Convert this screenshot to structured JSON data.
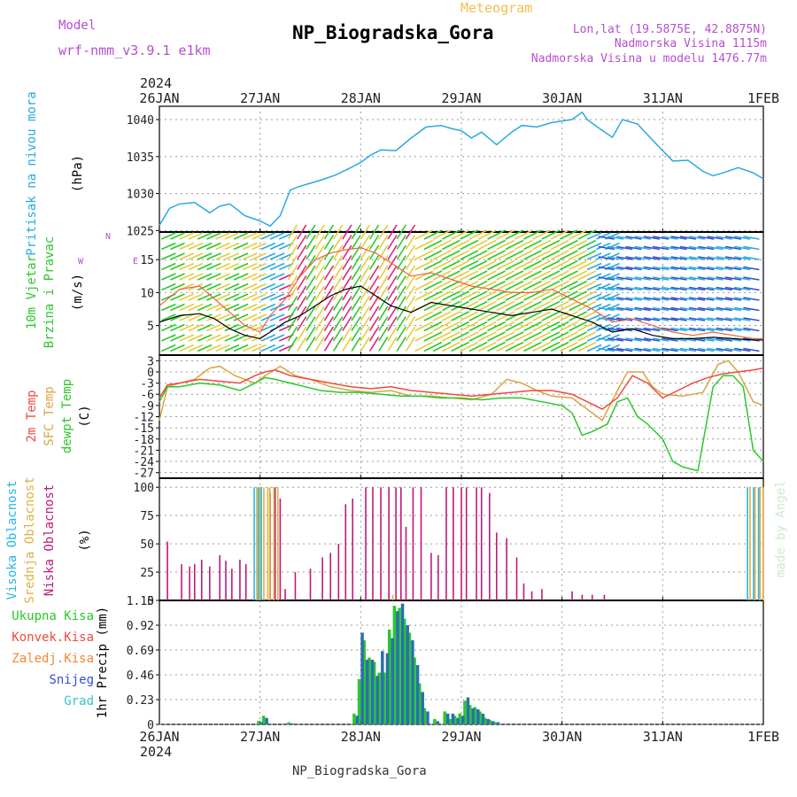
{
  "header": {
    "model_label": "Model",
    "model_name": "wrf-nmm_v3.9.1 e1km",
    "product": "Meteogram",
    "station": "NP_Biogradska_Gora",
    "coords": "Lon,lat (19.5875E, 42.8875N)",
    "elevation": "Nadmorska Visina 1115m",
    "model_elevation": "Nadmorska Visina u modelu 1476.77m",
    "credit": "made by Angel",
    "footer_station": "NP_Biogradska_Gora"
  },
  "colors": {
    "pressure": "#29a9e0",
    "temp2m": "#f04a3c",
    "sfc": "#d9a441",
    "dewpt": "#29c929",
    "high_cloud": "#28b4e6",
    "mid_cloud": "#e0b040",
    "low_cloud": "#c0187a",
    "label_purple": "#b54fd0",
    "total_precip": "#29c929",
    "conv": "#f04a3c",
    "frozen": "#f08a30",
    "snow": "#3050d0",
    "hail": "#30c8c8",
    "gray_text": "#333333"
  },
  "chart_data": [
    {
      "type": "line",
      "panel": "pressure",
      "year_label": "2024",
      "x_ticks": [
        "26JAN",
        "27JAN",
        "28JAN",
        "29JAN",
        "30JAN",
        "31JAN",
        "1FEB"
      ],
      "ylabel_title": "Pritisak na nivou mora",
      "ylabel_unit": "(hPa)",
      "yticks": [
        "1025",
        "1030",
        "1035",
        "1040"
      ],
      "ylim": [
        1024.8,
        1041.8
      ],
      "series": [
        {
          "name": "Pritisak na nivou mora",
          "x_days": [
            0,
            0.1,
            0.2,
            0.35,
            0.5,
            0.6,
            0.7,
            0.85,
            1.0,
            1.1,
            1.2,
            1.3,
            1.4,
            1.5,
            1.6,
            1.75,
            1.9,
            2.0,
            2.1,
            2.2,
            2.35,
            2.5,
            2.65,
            2.8,
            2.9,
            3.0,
            3.1,
            3.2,
            3.35,
            3.5,
            3.6,
            3.75,
            3.9,
            4.0,
            4.1,
            4.2,
            4.25,
            4.35,
            4.5,
            4.6,
            4.75,
            4.9,
            5.0,
            5.1,
            5.25,
            5.4,
            5.5,
            5.6,
            5.75,
            5.9,
            6.0
          ],
          "values": [
            1025.7,
            1028.0,
            1028.6,
            1028.8,
            1027.4,
            1028.3,
            1028.6,
            1027.0,
            1026.3,
            1025.6,
            1027.0,
            1030.5,
            1031.0,
            1031.4,
            1031.8,
            1032.5,
            1033.5,
            1034.2,
            1035.2,
            1035.9,
            1035.8,
            1037.5,
            1039.0,
            1039.2,
            1038.8,
            1038.5,
            1037.5,
            1038.3,
            1036.6,
            1038.3,
            1039.2,
            1039.0,
            1039.6,
            1039.8,
            1040.0,
            1041.0,
            1040.0,
            1039.0,
            1037.6,
            1040.0,
            1039.4,
            1037.2,
            1035.8,
            1034.4,
            1034.5,
            1033.0,
            1032.4,
            1032.8,
            1033.5,
            1032.8,
            1032.0
          ]
        }
      ]
    },
    {
      "type": "line",
      "panel": "wind",
      "ylabel_title": "10m Vjetar",
      "ylabel_title2": "Brzina i Pravac",
      "ylabel_unit": "(m/s)",
      "yticks": [
        "5",
        "10",
        "15"
      ],
      "ylim": [
        0.5,
        19.2
      ],
      "compass": "N",
      "series": [
        {
          "name": "wind speed",
          "x_days": [
            0,
            0.2,
            0.4,
            0.55,
            0.7,
            0.85,
            1.0,
            1.1,
            1.25,
            1.4,
            1.55,
            1.7,
            1.85,
            2.0,
            2.15,
            2.3,
            2.5,
            2.7,
            2.9,
            3.1,
            3.3,
            3.5,
            3.7,
            3.9,
            4.1,
            4.3,
            4.5,
            4.7,
            4.9,
            5.1,
            5.3,
            5.5,
            5.7,
            5.9,
            6.0
          ],
          "values": [
            5.5,
            6.5,
            6.8,
            6.0,
            4.5,
            3.5,
            3.0,
            4.0,
            5.5,
            6.5,
            8.0,
            9.5,
            10.5,
            11.0,
            9.5,
            8.0,
            7.0,
            8.5,
            8.0,
            7.5,
            7.0,
            6.5,
            7.0,
            7.5,
            6.5,
            5.5,
            4.0,
            4.5,
            3.5,
            3.0,
            3.0,
            3.2,
            3.0,
            2.8,
            2.8
          ]
        },
        {
          "name": "wind gust",
          "x_days": [
            0,
            0.2,
            0.4,
            0.55,
            0.7,
            0.85,
            1.0,
            1.1,
            1.25,
            1.4,
            1.55,
            1.7,
            1.85,
            2.0,
            2.15,
            2.3,
            2.5,
            2.7,
            2.9,
            3.1,
            3.3,
            3.5,
            3.7,
            3.9,
            4.1,
            4.3,
            4.5,
            4.7,
            4.9,
            5.1,
            5.3,
            5.5,
            5.7,
            5.9,
            6.0
          ],
          "values": [
            8.0,
            10.5,
            11.0,
            9.0,
            7.0,
            5.0,
            4.0,
            6.5,
            9.0,
            12.5,
            15.0,
            16.0,
            16.5,
            16.8,
            16.0,
            14.5,
            12.5,
            13.0,
            12.0,
            11.0,
            10.5,
            10.0,
            10.0,
            10.5,
            9.0,
            7.5,
            5.5,
            6.0,
            5.0,
            4.0,
            3.5,
            4.0,
            3.5,
            3.0,
            3.0
          ]
        }
      ]
    },
    {
      "type": "line",
      "panel": "temperature",
      "ylabel_title": "2m Temp",
      "ylabel_title2": "SFC Temp",
      "ylabel_title3": "dewpt Temp",
      "ylabel_unit": "(C)",
      "yticks": [
        "3",
        "0",
        "-3",
        "-6",
        "-9",
        "-12",
        "-15",
        "-18",
        "-21",
        "-24",
        "-27"
      ],
      "ylim": [
        -28.5,
        4.5
      ],
      "series": [
        {
          "name": "2m Temp",
          "x_days": [
            0,
            0.08,
            0.2,
            0.4,
            0.6,
            0.8,
            0.95,
            1.05,
            1.15,
            1.3,
            1.5,
            1.7,
            1.9,
            2.1,
            2.3,
            2.5,
            2.7,
            2.9,
            3.1,
            3.3,
            3.5,
            3.7,
            3.9,
            4.1,
            4.25,
            4.4,
            4.55,
            4.7,
            4.85,
            5.0,
            5.15,
            5.3,
            5.45,
            5.6,
            5.75,
            5.9,
            6.0
          ],
          "values": [
            -7,
            -3.5,
            -3,
            -2,
            -2.5,
            -3,
            -1,
            0,
            0.5,
            -1,
            -2,
            -3,
            -4,
            -4.5,
            -4,
            -5,
            -5.5,
            -6,
            -6.5,
            -6,
            -5.5,
            -5,
            -5,
            -6,
            -8,
            -10,
            -7,
            -1,
            -3,
            -7,
            -5,
            -3,
            -1.5,
            -0.5,
            0,
            0.5,
            1
          ]
        },
        {
          "name": "SFC Temp",
          "x_days": [
            0,
            0.08,
            0.2,
            0.35,
            0.5,
            0.6,
            0.75,
            0.95,
            1.05,
            1.2,
            1.35,
            1.5,
            1.7,
            1.9,
            2.1,
            2.3,
            2.5,
            2.7,
            2.9,
            3.1,
            3.3,
            3.45,
            3.6,
            3.75,
            3.9,
            4.1,
            4.25,
            4.4,
            4.55,
            4.65,
            4.8,
            4.9,
            5.0,
            5.2,
            5.4,
            5.55,
            5.65,
            5.75,
            5.9,
            6.0
          ],
          "values": [
            -13,
            -4,
            -3,
            -2,
            1,
            1.5,
            -1,
            -3,
            -1,
            1.5,
            -1,
            -2,
            -4,
            -5,
            -5.5,
            -5,
            -6.5,
            -6.5,
            -7,
            -7.5,
            -6,
            -2,
            -3,
            -5,
            -6.5,
            -7,
            -10,
            -13,
            -5,
            0,
            0,
            -4,
            -6,
            -6.5,
            -5.5,
            2,
            3,
            0,
            -8,
            -9
          ]
        },
        {
          "name": "dewpt Temp",
          "x_days": [
            0,
            0.08,
            0.2,
            0.4,
            0.6,
            0.8,
            0.95,
            1.05,
            1.15,
            1.3,
            1.45,
            1.6,
            1.8,
            2.0,
            2.2,
            2.4,
            2.6,
            2.8,
            3.0,
            3.2,
            3.4,
            3.6,
            3.8,
            4.0,
            4.1,
            4.2,
            4.3,
            4.45,
            4.55,
            4.65,
            4.75,
            4.85,
            5.0,
            5.1,
            5.2,
            5.35,
            5.5,
            5.6,
            5.7,
            5.8,
            5.9,
            6.0
          ],
          "values": [
            -8,
            -4,
            -4,
            -3,
            -3.5,
            -5,
            -3,
            -1.5,
            -2,
            -3,
            -4,
            -5,
            -5.5,
            -5.5,
            -6,
            -6.5,
            -6.5,
            -7,
            -7,
            -7.5,
            -7,
            -7,
            -8,
            -9,
            -11,
            -17,
            -16,
            -14,
            -8,
            -7,
            -12,
            -14,
            -18,
            -24,
            -25.5,
            -26.5,
            -4,
            -1,
            -1,
            -4,
            -21,
            -24
          ]
        }
      ]
    },
    {
      "type": "bar",
      "panel": "clouds",
      "ylabel_title": "Visoka Oblacnost",
      "ylabel_title2": "Srednja Oblacnost",
      "ylabel_title3": "Niska Oblacnost",
      "ylabel_unit": "(%)",
      "yticks": [
        "0",
        "25",
        "50",
        "75",
        "100"
      ],
      "ylim": [
        0,
        108
      ],
      "series": [
        {
          "name": "Niska Oblacnost",
          "x_days": [
            0.08,
            0.22,
            0.3,
            0.35,
            0.42,
            0.5,
            0.6,
            0.66,
            0.72,
            0.8,
            0.86,
            1.1,
            1.15,
            1.2,
            1.25,
            1.35,
            1.5,
            1.62,
            1.7,
            1.78,
            1.85,
            1.92,
            2.05,
            2.12,
            2.2,
            2.28,
            2.35,
            2.4,
            2.45,
            2.52,
            2.6,
            2.7,
            2.77,
            2.85,
            2.92,
            3.0,
            3.05,
            3.15,
            3.2,
            3.28,
            3.35,
            3.45,
            3.55,
            3.62,
            3.7,
            3.8,
            4.1,
            4.2,
            4.3,
            4.42
          ],
          "values": [
            52,
            32,
            30,
            32,
            36,
            30,
            40,
            35,
            28,
            36,
            32,
            95,
            100,
            90,
            10,
            25,
            28,
            38,
            42,
            50,
            85,
            90,
            100,
            100,
            100,
            100,
            100,
            100,
            65,
            100,
            100,
            42,
            40,
            100,
            100,
            100,
            100,
            100,
            100,
            95,
            60,
            55,
            38,
            15,
            8,
            10,
            8,
            5,
            5,
            5
          ]
        },
        {
          "name": "Srednja Oblacnost",
          "x_days": [
            0.95,
            0.98,
            1.02,
            1.06,
            1.08,
            1.12,
            1.16,
            2.3,
            5.85,
            5.9,
            5.95,
            5.98
          ],
          "values": [
            100,
            100,
            100,
            100,
            100,
            100,
            100,
            5,
            100,
            100,
            100,
            100
          ]
        },
        {
          "name": "Visoka Oblacnost",
          "x_days": [
            0.96,
            1.0,
            1.03,
            5.86,
            5.92,
            5.97
          ],
          "values": [
            100,
            100,
            100,
            100,
            100,
            100
          ]
        }
      ]
    },
    {
      "type": "bar",
      "panel": "precip",
      "ylabel": "1hr Precip (mm)",
      "yticks": [
        "0",
        "0.23",
        "0.46",
        "0.69",
        "0.92",
        "1.15"
      ],
      "ylim": [
        0,
        1.15
      ],
      "legend": [
        "Ukupna Kisa",
        "Konvek.Kisa",
        "Zaledj.Kisa",
        "Snijeg",
        "Grad"
      ],
      "series": [
        {
          "name": "Ukupna Kisa",
          "x_days": [
            1.0,
            1.05,
            1.3,
            1.95,
            2.0,
            2.05,
            2.1,
            2.15,
            2.2,
            2.25,
            2.3,
            2.35,
            2.4,
            2.45,
            2.5,
            2.55,
            2.6,
            2.65,
            2.75,
            2.85,
            2.9,
            2.95,
            3.0,
            3.05,
            3.1,
            3.15,
            3.2,
            3.25,
            3.3,
            3.35
          ],
          "values": [
            0.03,
            0.08,
            0.02,
            0.1,
            0.42,
            0.78,
            0.62,
            0.58,
            0.48,
            0.48,
            0.88,
            1.1,
            1.08,
            0.98,
            0.85,
            0.62,
            0.38,
            0.15,
            0.05,
            0.12,
            0.05,
            0.08,
            0.1,
            0.22,
            0.18,
            0.16,
            0.12,
            0.06,
            0.04,
            0.02
          ]
        },
        {
          "name": "Snijeg",
          "x_days": [
            1.0,
            1.05,
            1.3,
            1.95,
            2.0,
            2.05,
            2.1,
            2.15,
            2.2,
            2.25,
            2.3,
            2.35,
            2.4,
            2.45,
            2.5,
            2.55,
            2.6,
            2.65,
            2.75,
            2.85,
            2.9,
            2.95,
            3.0,
            3.05,
            3.1,
            3.15,
            3.2,
            3.25,
            3.3,
            3.35
          ],
          "values": [
            0.02,
            0.06,
            0.01,
            0.08,
            0.85,
            0.6,
            0.6,
            0.45,
            0.68,
            0.66,
            0.8,
            1.05,
            1.12,
            0.92,
            0.78,
            0.55,
            0.3,
            0.12,
            0.03,
            0.1,
            0.1,
            0.06,
            0.08,
            0.25,
            0.15,
            0.14,
            0.1,
            0.05,
            0.03,
            0.02
          ]
        }
      ]
    }
  ]
}
